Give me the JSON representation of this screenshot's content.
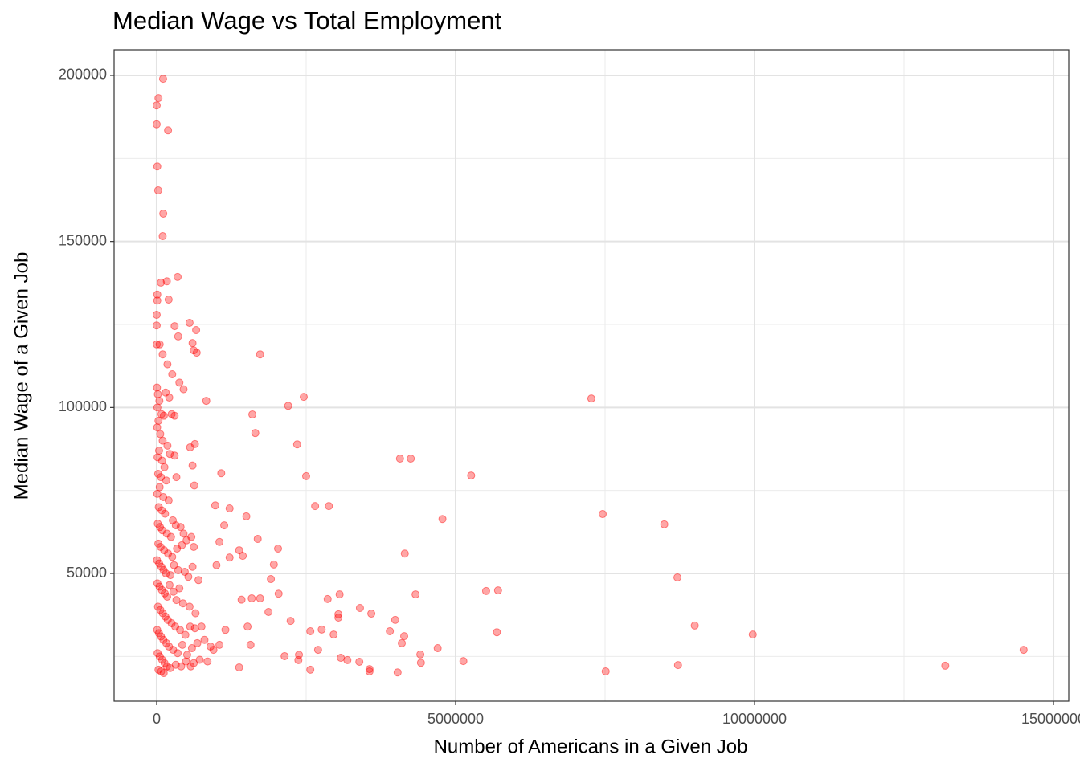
{
  "chart_data": {
    "type": "scatter",
    "title": "Median Wage vs Total Employment",
    "x_label": "Number of Americans in a Given Job",
    "y_label": "Median Wage of a Given Job",
    "xlim": [
      -712000,
      15255000
    ],
    "xticks": [
      0,
      5000000,
      10000000,
      15000000
    ],
    "ylim": [
      11540,
      207740
    ],
    "yticks": [
      50000,
      100000,
      150000,
      200000
    ],
    "grid": true,
    "series": [
      {
        "color": "#ff0000",
        "x": [
          107000,
          0,
          30000,
          0,
          190000,
          10000,
          25000,
          110000,
          100000,
          350000,
          170000,
          70000,
          10000,
          10000,
          200000,
          0,
          0,
          300000,
          550000,
          660000,
          360000,
          600000,
          620000,
          670000,
          1730000,
          2460000,
          7270000,
          830000,
          2200000,
          1600000,
          1650000,
          2350000,
          4070000,
          4250000,
          2500000,
          5260000,
          1080000,
          2650000,
          2880000,
          1220000,
          7460000,
          1500000,
          4780000,
          8490000,
          1130000,
          1690000,
          2030000,
          4150000,
          1380000,
          1440000,
          1220000,
          1960000,
          8710000,
          1910000,
          5510000,
          5710000,
          3060000,
          2040000,
          4330000,
          2860000,
          1420000,
          1590000,
          1730000,
          3400000,
          3590000,
          3040000,
          3040000,
          1870000,
          3990000,
          2240000,
          9000000,
          1520000,
          2760000,
          2570000,
          2960000,
          5690000,
          3900000,
          9970000,
          4140000,
          4100000,
          4700000,
          14500000,
          2700000,
          1570000,
          4410000,
          2140000,
          2380000,
          3080000,
          3190000,
          3390000,
          5130000,
          4420000,
          2370000,
          8720000,
          13190000,
          1380000,
          3560000,
          3560000,
          2570000,
          7510000,
          4030000,
          5000,
          20000,
          45000,
          12000,
          80000,
          30000,
          150000,
          210000,
          120000,
          250000,
          8000,
          60000,
          100000,
          180000,
          40000,
          15000,
          90000,
          220000,
          300000,
          130000,
          25000,
          70000,
          160000,
          50000,
          10000,
          110000,
          200000,
          35000,
          85000,
          140000,
          270000,
          18000,
          55000,
          95000,
          170000,
          240000,
          320000,
          400000,
          450000,
          500000,
          580000,
          620000,
          28000,
          65000,
          125000,
          190000,
          260000,
          340000,
          420000,
          5000,
          42000,
          78000,
          115000,
          155000,
          230000,
          290000,
          360000,
          470000,
          530000,
          600000,
          700000,
          12000,
          48000,
          88000,
          135000,
          175000,
          215000,
          280000,
          330000,
          380000,
          440000,
          550000,
          650000,
          22000,
          62000,
          102000,
          145000,
          185000,
          250000,
          310000,
          390000,
          480000,
          560000,
          640000,
          750000,
          8000,
          38000,
          72000,
          112000,
          162000,
          205000,
          275000,
          350000,
          430000,
          510000,
          590000,
          680000,
          800000,
          900000,
          15000,
          52000,
          92000,
          132000,
          172000,
          225000,
          320000,
          410000,
          490000,
          570000,
          620000,
          720000,
          850000,
          30000,
          75000,
          118000,
          950000,
          1050000,
          1150000,
          1000000,
          1050000,
          980000,
          630000,
          600000,
          560000,
          640000,
          330000,
          380000,
          450000,
          300000,
          260000,
          180000,
          100000,
          50000,
          2000
        ],
        "y": [
          199000,
          191000,
          193200,
          185300,
          183500,
          172600,
          165400,
          158400,
          151600,
          139300,
          138000,
          137600,
          134000,
          132200,
          132500,
          127900,
          124700,
          124500,
          125500,
          123300,
          121400,
          119400,
          117200,
          116500,
          116000,
          103200,
          102700,
          102000,
          100500,
          97900,
          92300,
          88900,
          84600,
          84600,
          79300,
          79500,
          80200,
          70300,
          70300,
          69600,
          67900,
          67200,
          66400,
          64800,
          64500,
          60400,
          57500,
          56000,
          57000,
          55300,
          54800,
          52700,
          48800,
          48300,
          44700,
          44900,
          43700,
          43900,
          43700,
          42300,
          42100,
          42500,
          42500,
          39600,
          37900,
          37700,
          36700,
          38400,
          36000,
          35700,
          34300,
          34000,
          33100,
          32600,
          31600,
          32300,
          32600,
          31600,
          31100,
          29000,
          27500,
          27000,
          27000,
          28500,
          25600,
          25100,
          25500,
          24600,
          23900,
          23400,
          23600,
          23100,
          23900,
          22400,
          22200,
          21700,
          21200,
          20500,
          21000,
          20500,
          20200,
          106000,
          104000,
          102000,
          100000,
          98000,
          96000,
          104500,
          103000,
          97500,
          98000,
          94000,
          92000,
          90000,
          88500,
          87000,
          85000,
          84000,
          86000,
          85500,
          82000,
          80000,
          79000,
          78000,
          76000,
          74000,
          73000,
          72000,
          70000,
          69000,
          68000,
          66000,
          65000,
          64000,
          63000,
          62000,
          61000,
          64500,
          64000,
          62000,
          60000,
          61000,
          58000,
          59000,
          58000,
          57000,
          56000,
          55000,
          57500,
          58500,
          54000,
          53000,
          52000,
          51000,
          50000,
          49500,
          52500,
          51000,
          50500,
          49000,
          52000,
          48000,
          47000,
          46000,
          45000,
          44000,
          43000,
          46500,
          44500,
          42000,
          45500,
          41000,
          40000,
          38000,
          40000,
          39000,
          38000,
          37000,
          36000,
          35000,
          34000,
          33000,
          31500,
          34000,
          33500,
          34000,
          33000,
          32000,
          31000,
          30000,
          29000,
          28000,
          27000,
          26000,
          28500,
          25500,
          27500,
          29000,
          30000,
          28000,
          26000,
          25000,
          24000,
          23000,
          22000,
          21500,
          22500,
          22000,
          23500,
          22000,
          23000,
          24000,
          23500,
          21000,
          20500,
          20000,
          27000,
          28500,
          33000,
          52500,
          59500,
          70500,
          76500,
          82500,
          88000,
          89000,
          79000,
          107500,
          105500,
          97500,
          110000,
          113000,
          116000,
          119000,
          119000
        ]
      }
    ]
  }
}
